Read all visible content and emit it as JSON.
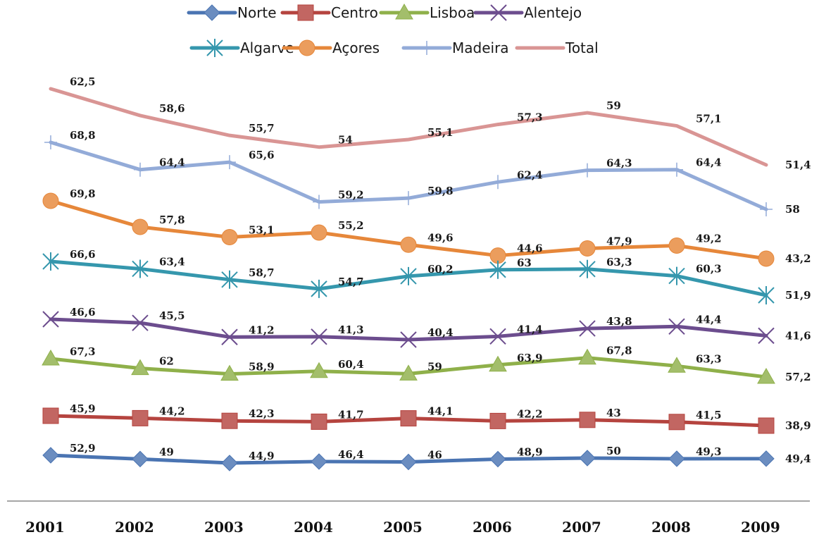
{
  "chart_data": {
    "type": "line",
    "categories": [
      "2001",
      "2002",
      "2003",
      "2004",
      "2005",
      "2006",
      "2007",
      "2008",
      "2009"
    ],
    "series": [
      {
        "name": "Norte",
        "color": "#4a74b2",
        "marker": "diamond",
        "values": [
          52.9,
          49,
          44.9,
          46.4,
          46,
          48.9,
          50,
          49.3,
          49.4
        ]
      },
      {
        "name": "Centro",
        "color": "#b5443f",
        "marker": "square",
        "values": [
          45.9,
          44.2,
          42.3,
          41.7,
          44.1,
          42.2,
          43,
          41.5,
          38.9
        ]
      },
      {
        "name": "Lisboa",
        "color": "#8fb04a",
        "marker": "triangle",
        "values": [
          67.3,
          62,
          58.9,
          60.4,
          59,
          63.9,
          67.8,
          63.3,
          57.2
        ]
      },
      {
        "name": "Alentejo",
        "color": "#6c4d8e",
        "marker": "x",
        "values": [
          46.6,
          45.5,
          41.2,
          41.3,
          40.4,
          41.4,
          43.8,
          44.4,
          41.6
        ]
      },
      {
        "name": "Algarve",
        "color": "#3597ad",
        "marker": "star",
        "values": [
          66.6,
          63.4,
          58.7,
          54.7,
          60.2,
          63,
          63.3,
          60.3,
          51.9
        ]
      },
      {
        "name": "Açores",
        "color": "#e6873a",
        "marker": "circle",
        "values": [
          69.8,
          57.8,
          53.1,
          55.2,
          49.6,
          44.6,
          47.9,
          49.2,
          43.2
        ]
      },
      {
        "name": "Madeira",
        "color": "#93abd8",
        "marker": "dash",
        "values": [
          68.8,
          64.4,
          65.6,
          59.2,
          59.8,
          62.4,
          64.3,
          64.4,
          58
        ]
      },
      {
        "name": "Total",
        "color": "#d99594",
        "marker": "none",
        "values": [
          62.5,
          58.6,
          55.7,
          54,
          55.1,
          57.3,
          59,
          57.1,
          51.4
        ]
      }
    ],
    "title": "",
    "xlabel": "",
    "ylabel": "",
    "legend_position": "top",
    "grid": false,
    "y_axis_visible": false,
    "x_axis_line_color": "#a6a6a6"
  }
}
